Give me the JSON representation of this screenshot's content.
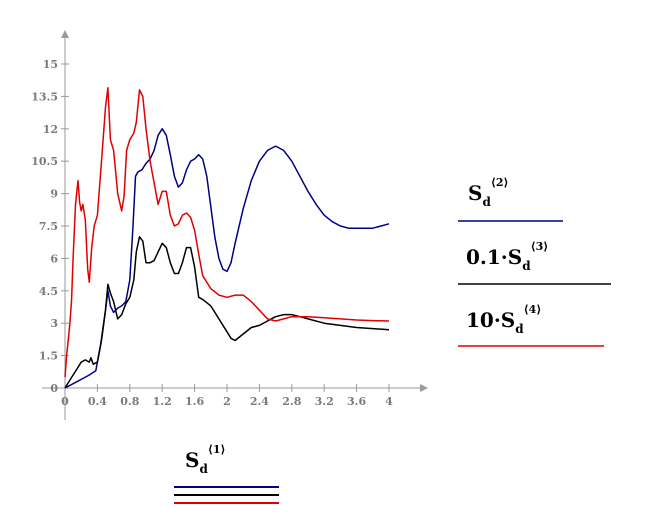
{
  "chart_data": {
    "type": "line",
    "xlim": [
      0,
      4
    ],
    "ylim": [
      0,
      15
    ],
    "x_ticks": [
      "0",
      "0.4",
      "0.8",
      "1.2",
      "1.6",
      "2",
      "2.4",
      "2.8",
      "3.2",
      "3.6",
      "4"
    ],
    "y_ticks": [
      "0",
      "1.5",
      "3",
      "4.5",
      "6",
      "7.5",
      "9",
      "10.5",
      "12",
      "13.5",
      "15"
    ],
    "xlabel": "",
    "ylabel": {
      "base": "S",
      "sub": "d",
      "sup": "⟨1⟩"
    },
    "grid": false,
    "legend": "right",
    "series": [
      {
        "label": {
          "prefix": "",
          "base": "S",
          "sub": "d",
          "sup": "⟨2⟩"
        },
        "color": "#000080",
        "points": [
          [
            0,
            0
          ],
          [
            0.1,
            0.2
          ],
          [
            0.2,
            0.4
          ],
          [
            0.3,
            0.6
          ],
          [
            0.38,
            0.8
          ],
          [
            0.44,
            2
          ],
          [
            0.5,
            3.6
          ],
          [
            0.53,
            4.5
          ],
          [
            0.56,
            3.8
          ],
          [
            0.6,
            3.5
          ],
          [
            0.65,
            3.7
          ],
          [
            0.7,
            3.8
          ],
          [
            0.75,
            4
          ],
          [
            0.8,
            5
          ],
          [
            0.84,
            7.5
          ],
          [
            0.87,
            9.8
          ],
          [
            0.9,
            10
          ],
          [
            0.95,
            10.1
          ],
          [
            1,
            10.4
          ],
          [
            1.05,
            10.6
          ],
          [
            1.1,
            11
          ],
          [
            1.15,
            11.7
          ],
          [
            1.2,
            12
          ],
          [
            1.25,
            11.7
          ],
          [
            1.3,
            10.8
          ],
          [
            1.35,
            9.8
          ],
          [
            1.4,
            9.3
          ],
          [
            1.45,
            9.5
          ],
          [
            1.5,
            10.1
          ],
          [
            1.55,
            10.5
          ],
          [
            1.6,
            10.6
          ],
          [
            1.65,
            10.8
          ],
          [
            1.7,
            10.6
          ],
          [
            1.75,
            9.8
          ],
          [
            1.8,
            8.4
          ],
          [
            1.85,
            7
          ],
          [
            1.9,
            6
          ],
          [
            1.95,
            5.5
          ],
          [
            2,
            5.4
          ],
          [
            2.05,
            5.8
          ],
          [
            2.1,
            6.7
          ],
          [
            2.2,
            8.3
          ],
          [
            2.3,
            9.6
          ],
          [
            2.4,
            10.5
          ],
          [
            2.5,
            11
          ],
          [
            2.6,
            11.2
          ],
          [
            2.7,
            11
          ],
          [
            2.8,
            10.5
          ],
          [
            2.9,
            9.8
          ],
          [
            3,
            9.1
          ],
          [
            3.1,
            8.5
          ],
          [
            3.2,
            8
          ],
          [
            3.3,
            7.7
          ],
          [
            3.4,
            7.5
          ],
          [
            3.5,
            7.4
          ],
          [
            3.6,
            7.4
          ],
          [
            3.7,
            7.4
          ],
          [
            3.8,
            7.4
          ],
          [
            3.9,
            7.5
          ],
          [
            4,
            7.6
          ]
        ]
      },
      {
        "label": {
          "prefix": "0.1·",
          "base": "S",
          "sub": "d",
          "sup": "⟨3⟩"
        },
        "color": "#000000",
        "points": [
          [
            0,
            0
          ],
          [
            0.05,
            0.3
          ],
          [
            0.1,
            0.6
          ],
          [
            0.15,
            0.9
          ],
          [
            0.2,
            1.2
          ],
          [
            0.25,
            1.3
          ],
          [
            0.3,
            1.2
          ],
          [
            0.32,
            1.4
          ],
          [
            0.35,
            1.1
          ],
          [
            0.4,
            1.2
          ],
          [
            0.45,
            2.2
          ],
          [
            0.5,
            3.6
          ],
          [
            0.53,
            4.8
          ],
          [
            0.56,
            4.4
          ],
          [
            0.6,
            4
          ],
          [
            0.65,
            3.2
          ],
          [
            0.7,
            3.4
          ],
          [
            0.75,
            3.9
          ],
          [
            0.8,
            4.2
          ],
          [
            0.85,
            5
          ],
          [
            0.88,
            6.3
          ],
          [
            0.92,
            7
          ],
          [
            0.96,
            6.8
          ],
          [
            1,
            5.8
          ],
          [
            1.05,
            5.8
          ],
          [
            1.1,
            5.9
          ],
          [
            1.15,
            6.3
          ],
          [
            1.2,
            6.7
          ],
          [
            1.25,
            6.5
          ],
          [
            1.3,
            5.8
          ],
          [
            1.35,
            5.3
          ],
          [
            1.4,
            5.3
          ],
          [
            1.45,
            5.8
          ],
          [
            1.5,
            6.5
          ],
          [
            1.55,
            6.5
          ],
          [
            1.6,
            5.6
          ],
          [
            1.65,
            4.2
          ],
          [
            1.7,
            4.1
          ],
          [
            1.8,
            3.8
          ],
          [
            1.9,
            3.2
          ],
          [
            2,
            2.6
          ],
          [
            2.05,
            2.3
          ],
          [
            2.1,
            2.2
          ],
          [
            2.2,
            2.5
          ],
          [
            2.3,
            2.8
          ],
          [
            2.4,
            2.9
          ],
          [
            2.5,
            3.1
          ],
          [
            2.6,
            3.3
          ],
          [
            2.7,
            3.4
          ],
          [
            2.8,
            3.4
          ],
          [
            2.9,
            3.3
          ],
          [
            3,
            3.2
          ],
          [
            3.2,
            3
          ],
          [
            3.4,
            2.9
          ],
          [
            3.6,
            2.8
          ],
          [
            3.8,
            2.75
          ],
          [
            4,
            2.7
          ]
        ]
      },
      {
        "label": {
          "prefix": "10·",
          "base": "S",
          "sub": "d",
          "sup": "⟨4⟩"
        },
        "color": "#e00000",
        "points": [
          [
            0,
            0.5
          ],
          [
            0.02,
            1.5
          ],
          [
            0.04,
            2.2
          ],
          [
            0.06,
            3
          ],
          [
            0.08,
            4
          ],
          [
            0.1,
            6
          ],
          [
            0.13,
            8.5
          ],
          [
            0.16,
            9.6
          ],
          [
            0.18,
            8.6
          ],
          [
            0.2,
            8.2
          ],
          [
            0.22,
            8.5
          ],
          [
            0.25,
            7.8
          ],
          [
            0.28,
            5.5
          ],
          [
            0.3,
            4.9
          ],
          [
            0.33,
            6.5
          ],
          [
            0.36,
            7.5
          ],
          [
            0.4,
            8
          ],
          [
            0.45,
            10.5
          ],
          [
            0.5,
            13
          ],
          [
            0.53,
            13.9
          ],
          [
            0.56,
            11.5
          ],
          [
            0.6,
            11
          ],
          [
            0.65,
            9
          ],
          [
            0.7,
            8.2
          ],
          [
            0.73,
            8.9
          ],
          [
            0.76,
            11
          ],
          [
            0.8,
            11.5
          ],
          [
            0.85,
            11.8
          ],
          [
            0.88,
            12.3
          ],
          [
            0.92,
            13.8
          ],
          [
            0.96,
            13.5
          ],
          [
            1,
            12
          ],
          [
            1.05,
            10.5
          ],
          [
            1.1,
            9.5
          ],
          [
            1.15,
            8.5
          ],
          [
            1.2,
            9.1
          ],
          [
            1.25,
            9.1
          ],
          [
            1.3,
            8
          ],
          [
            1.35,
            7.5
          ],
          [
            1.4,
            7.6
          ],
          [
            1.45,
            8
          ],
          [
            1.5,
            8.1
          ],
          [
            1.55,
            7.9
          ],
          [
            1.6,
            7.3
          ],
          [
            1.65,
            6.2
          ],
          [
            1.7,
            5.2
          ],
          [
            1.8,
            4.6
          ],
          [
            1.9,
            4.3
          ],
          [
            2,
            4.2
          ],
          [
            2.1,
            4.3
          ],
          [
            2.2,
            4.3
          ],
          [
            2.3,
            4
          ],
          [
            2.4,
            3.6
          ],
          [
            2.5,
            3.2
          ],
          [
            2.6,
            3.1
          ],
          [
            2.7,
            3.2
          ],
          [
            2.8,
            3.3
          ],
          [
            2.9,
            3.3
          ],
          [
            3,
            3.3
          ],
          [
            3.2,
            3.25
          ],
          [
            3.4,
            3.2
          ],
          [
            3.6,
            3.15
          ],
          [
            3.8,
            3.12
          ],
          [
            4,
            3.1
          ]
        ]
      }
    ]
  }
}
